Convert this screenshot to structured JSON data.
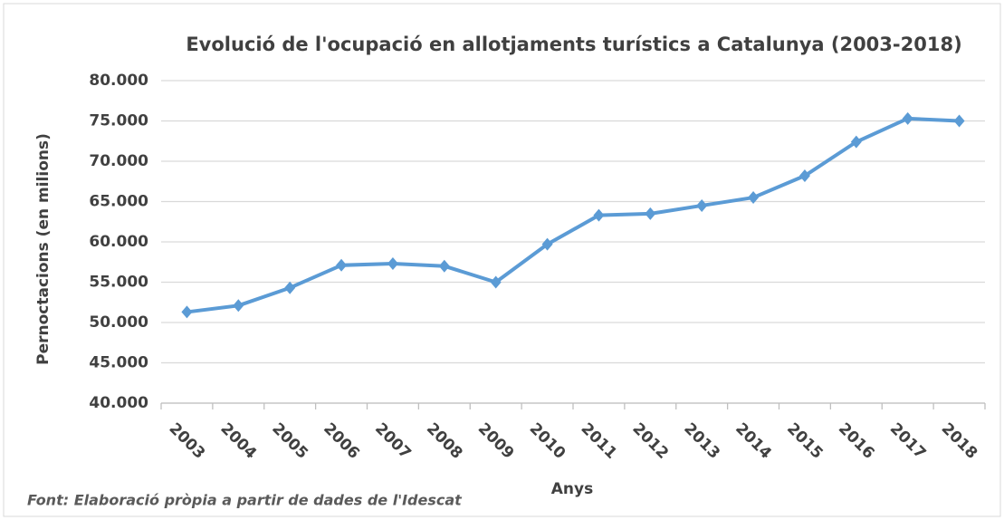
{
  "chart_data": {
    "type": "line",
    "title": "Evolució de l'ocupació en allotjaments turístics a Catalunya (2003-2018)",
    "x_label": "Anys",
    "y_label": "Pernoctacions (en milions)",
    "source": "Font: Elaboració pròpia a partir de dades de l'Idescat",
    "categories": [
      "2003",
      "2004",
      "2005",
      "2006",
      "2007",
      "2008",
      "2009",
      "2010",
      "2011",
      "2012",
      "2013",
      "2014",
      "2015",
      "2016",
      "2017",
      "2018"
    ],
    "values": [
      51300,
      52100,
      54300,
      57100,
      57300,
      57000,
      55000,
      59700,
      63300,
      63500,
      64500,
      65500,
      68200,
      72400,
      75300,
      75000
    ],
    "color": "#5b9bd5",
    "ylim": [
      40000,
      80000
    ],
    "yticks": [
      {
        "value": 40000,
        "label": "40.000"
      },
      {
        "value": 45000,
        "label": "45.000"
      },
      {
        "value": 50000,
        "label": "50.000"
      },
      {
        "value": 55000,
        "label": "55.000"
      },
      {
        "value": 60000,
        "label": "60.000"
      },
      {
        "value": 65000,
        "label": "65.000"
      },
      {
        "value": 70000,
        "label": "70.000"
      },
      {
        "value": 75000,
        "label": "75.000"
      },
      {
        "value": 80000,
        "label": "80.000"
      }
    ],
    "grid": true
  }
}
